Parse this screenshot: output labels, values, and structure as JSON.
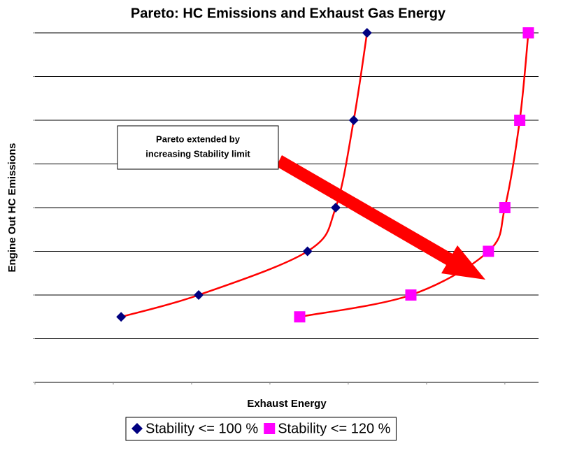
{
  "chart_data": {
    "type": "scatter",
    "title": "Pareto: HC Emissions and Exhaust Gas Energy",
    "xlabel": "Exhaust Energy",
    "ylabel": "Engine Out HC Emissions",
    "annotation": [
      "Pareto extended by",
      "increasing Stability limit"
    ],
    "xlim": [
      0,
      6.43
    ],
    "xticks": [
      0,
      1,
      2,
      3,
      4,
      5,
      6
    ],
    "ylim": [
      0,
      8
    ],
    "yticks": [
      0,
      1,
      2,
      3,
      4,
      5,
      6,
      7,
      8
    ],
    "grid": true,
    "legend": "bottom",
    "line_color": "#ff0000",
    "series": [
      {
        "name": "Stability <= 100 %",
        "color": "#000080",
        "marker": "diamond",
        "x": [
          1.1,
          2.09,
          3.48,
          3.84,
          4.07,
          4.24
        ],
        "values": [
          1.5,
          2,
          3,
          4,
          6,
          8
        ]
      },
      {
        "name": "Stability <= 120 %",
        "color": "#ff00ff",
        "marker": "square",
        "x": [
          3.38,
          4.8,
          5.79,
          6.0,
          6.19,
          6.3
        ],
        "values": [
          1.5,
          2,
          3,
          4,
          6,
          8
        ]
      }
    ]
  }
}
